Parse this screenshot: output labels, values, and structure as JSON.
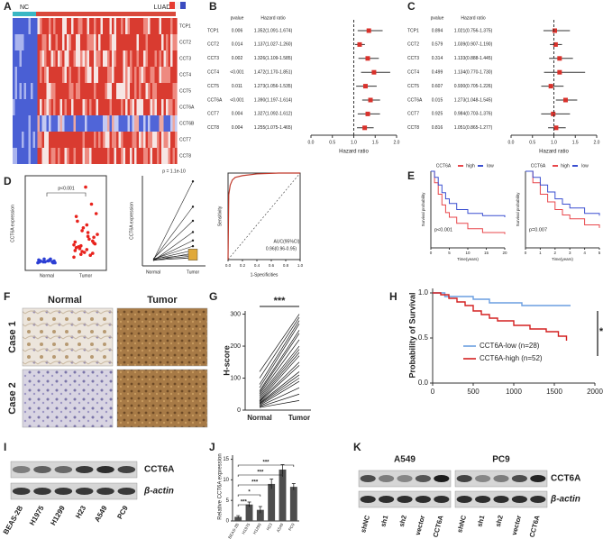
{
  "panel_labels": [
    "A",
    "B",
    "C",
    "D",
    "E",
    "F",
    "G",
    "H",
    "I",
    "J",
    "K"
  ],
  "heatmap": {
    "groups": [
      "NC",
      "LUAD"
    ],
    "genes": [
      "TCP1",
      "CCT2",
      "CCT3",
      "CCT4",
      "CCT5",
      "CCT6A",
      "CCT6B",
      "CCT7",
      "CCT8"
    ]
  },
  "forest_b": {
    "header": [
      "pvalue",
      "Hazard ratio"
    ],
    "xlabel": "Hazard ratio",
    "xlim": [
      0,
      2
    ],
    "ref_line": 1,
    "xticks": [
      {
        "value": 0,
        "label": "0.0"
      },
      0.5,
      {
        "value": 1,
        "label": "1.0"
      },
      1.5,
      {
        "value": 2,
        "label": "2.0"
      }
    ],
    "rows": [
      {
        "gene": "TCP1",
        "pvalue": "0.006",
        "label": "1.352(1.091-1.674)",
        "hr": 1.352,
        "lo": 1.091,
        "hi": 1.674
      },
      {
        "gene": "CCT2",
        "pvalue": "0.014",
        "label": "1.137(1.027-1.260)",
        "hr": 1.137,
        "lo": 1.027,
        "hi": 1.26
      },
      {
        "gene": "CCT3",
        "pvalue": "0.002",
        "label": "1.326(1.109-1.585)",
        "hr": 1.326,
        "lo": 1.109,
        "hi": 1.585
      },
      {
        "gene": "CCT4",
        "pvalue": "<0.001",
        "label": "1.472(1.170-1.851)",
        "hr": 1.472,
        "lo": 1.17,
        "hi": 1.851
      },
      {
        "gene": "CCT5",
        "pvalue": "0.011",
        "label": "1.273(1.056-1.535)",
        "hr": 1.273,
        "lo": 1.056,
        "hi": 1.535
      },
      {
        "gene": "CCT6A",
        "pvalue": "<0.001",
        "label": "1.390(1.197-1.614)",
        "hr": 1.39,
        "lo": 1.197,
        "hi": 1.614
      },
      {
        "gene": "CCT7",
        "pvalue": "0.004",
        "label": "1.327(1.092-1.612)",
        "hr": 1.327,
        "lo": 1.092,
        "hi": 1.612
      },
      {
        "gene": "CCT8",
        "pvalue": "0.004",
        "label": "1.255(1.075-1.465)",
        "hr": 1.255,
        "lo": 1.075,
        "hi": 1.465
      }
    ]
  },
  "forest_c": {
    "header": [
      "pvalue",
      "Hazard ratio"
    ],
    "xlabel": "Hazard ratio",
    "xlim": [
      0,
      2
    ],
    "ref_line": 1,
    "xticks": [
      {
        "value": 0,
        "label": "0.0"
      },
      0.5,
      {
        "value": 1,
        "label": "1.0"
      },
      1.5,
      {
        "value": 2,
        "label": "2.0"
      }
    ],
    "rows": [
      {
        "gene": "TCP1",
        "pvalue": "0.894",
        "label": "1.021(0.756-1.375)",
        "hr": 1.021,
        "lo": 0.756,
        "hi": 1.375
      },
      {
        "gene": "CCT2",
        "pvalue": "0.579",
        "label": "1.039(0.907-1.190)",
        "hr": 1.039,
        "lo": 0.907,
        "hi": 1.19
      },
      {
        "gene": "CCT3",
        "pvalue": "0.314",
        "label": "1.133(0.888-1.445)",
        "hr": 1.133,
        "lo": 0.888,
        "hi": 1.445
      },
      {
        "gene": "CCT4",
        "pvalue": "0.499",
        "label": "1.134(0.770-1.730)",
        "hr": 1.134,
        "lo": 0.77,
        "hi": 1.73
      },
      {
        "gene": "CCT5",
        "pvalue": "0.607",
        "label": "0.930(0.705-1.226)",
        "hr": 0.93,
        "lo": 0.705,
        "hi": 1.226
      },
      {
        "gene": "CCT6A",
        "pvalue": "0.015",
        "label": "1.273(1.048-1.545)",
        "hr": 1.273,
        "lo": 1.048,
        "hi": 1.545
      },
      {
        "gene": "CCT7",
        "pvalue": "0.925",
        "label": "0.984(0.703-1.376)",
        "hr": 0.984,
        "lo": 0.703,
        "hi": 1.376
      },
      {
        "gene": "CCT8",
        "pvalue": "0.816",
        "label": "1.051(0.865-1.277)",
        "hr": 1.051,
        "lo": 0.865,
        "hi": 1.277
      }
    ]
  },
  "d_dot": {
    "ylabel": "CCT6A expression",
    "categories": [
      "Normal",
      "Tumor"
    ],
    "annotation": "p<0.001",
    "ylim": [
      0,
      100
    ],
    "normal": [
      8,
      9,
      10,
      9,
      11,
      8,
      10,
      12,
      9,
      10,
      11,
      9,
      10,
      8,
      12
    ],
    "tumor": [
      14,
      18,
      22,
      26,
      30,
      35,
      40,
      20,
      24,
      28,
      33,
      45,
      52,
      60,
      16,
      19,
      25,
      38,
      70,
      88,
      23,
      27,
      31,
      48,
      17,
      21,
      29,
      36,
      42,
      57
    ]
  },
  "d_paired": {
    "ylabel": "CCT6A expression",
    "categories": [
      "Normal",
      "Tumor"
    ],
    "annotation": "p = 1.1e-10",
    "ylim": [
      0,
      320
    ],
    "normal": [
      20,
      22,
      25,
      18,
      21,
      24,
      23,
      19,
      26,
      22,
      20,
      21
    ],
    "tumor": [
      300,
      210,
      160,
      120,
      90,
      70,
      55,
      45,
      40,
      35,
      30,
      28
    ]
  },
  "d_roc": {
    "xlabel": "1-Specificities",
    "ylabel": "Sensitivity",
    "annotation": [
      "AUC(95%CI)",
      "0.96(0.96-0.95)"
    ],
    "xlim": [
      0,
      1
    ],
    "ylim": [
      0,
      1
    ],
    "xticks": [
      {
        "value": 0,
        "label": "0.0"
      },
      0.2,
      0.4,
      0.6,
      0.8,
      {
        "value": 1,
        "label": "1.0"
      }
    ],
    "x": [
      0,
      0.01,
      0.03,
      0.06,
      0.1,
      0.2,
      0.4,
      0.7,
      1
    ],
    "y": [
      0,
      0.75,
      0.86,
      0.92,
      0.95,
      0.97,
      0.99,
      1,
      1
    ]
  },
  "e_km": [
    {
      "legend_title": "CCT6A",
      "xlabel": "Time(years)",
      "ylabel": "Survival probability",
      "annotation": "p<0.001",
      "xlim": [
        0,
        20
      ],
      "ylim": [
        0,
        1
      ],
      "xticks": [
        0,
        5,
        10,
        15,
        20
      ],
      "series": [
        {
          "name": "high",
          "color": "#e8474b",
          "x": [
            0,
            1,
            2,
            3,
            4,
            5,
            7,
            10,
            14,
            20
          ],
          "y": [
            1,
            0.85,
            0.7,
            0.56,
            0.46,
            0.4,
            0.32,
            0.25,
            0.2,
            0.18
          ]
        },
        {
          "name": "low",
          "color": "#3a4fd0",
          "x": [
            0,
            1,
            2,
            3,
            4,
            5,
            7,
            10,
            14,
            20
          ],
          "y": [
            1,
            0.92,
            0.82,
            0.72,
            0.64,
            0.58,
            0.5,
            0.45,
            0.42,
            0.4
          ]
        }
      ]
    },
    {
      "legend_title": "CCT6A",
      "xlabel": "Time(years)",
      "ylabel": "Survival probability",
      "annotation": "p=0.007",
      "xlim": [
        0,
        5
      ],
      "ylim": [
        0,
        1
      ],
      "xticks": [
        0,
        1,
        2,
        3,
        4,
        5
      ],
      "series": [
        {
          "name": "high",
          "color": "#e8474b",
          "x": [
            0,
            0.5,
            1,
            1.5,
            2,
            2.5,
            3,
            4,
            5
          ],
          "y": [
            1,
            0.85,
            0.7,
            0.6,
            0.5,
            0.43,
            0.38,
            0.3,
            0.26
          ]
        },
        {
          "name": "low",
          "color": "#3a4fd0",
          "x": [
            0,
            0.5,
            1,
            1.5,
            2,
            2.5,
            3,
            4,
            5
          ],
          "y": [
            1,
            0.92,
            0.82,
            0.73,
            0.64,
            0.57,
            0.52,
            0.45,
            0.42
          ]
        }
      ]
    }
  ],
  "f_ihc": {
    "columns": [
      "Normal",
      "Tumor"
    ],
    "rows": [
      "Case 1",
      "Case 2"
    ]
  },
  "g_hscore": {
    "ylabel": "H-score",
    "categories": [
      "Normal",
      "Tumor"
    ],
    "annotation": "***",
    "ylim": [
      0,
      310
    ],
    "yticks": [
      0,
      100,
      200,
      300
    ],
    "normal": [
      120,
      100,
      80,
      70,
      60,
      55,
      50,
      45,
      40,
      35,
      30,
      28,
      25,
      22,
      20,
      18,
      15,
      12,
      10,
      8
    ],
    "tumor": [
      300,
      290,
      280,
      270,
      250,
      240,
      220,
      200,
      190,
      180,
      170,
      150,
      140,
      120,
      110,
      100,
      90,
      70,
      50,
      30
    ]
  },
  "h_km": {
    "ylabel": "Probability of Survival",
    "annotation": "*",
    "xlim": [
      0,
      2000
    ],
    "xticks": [
      0,
      500,
      1000,
      1500,
      2000
    ],
    "ylim": [
      0,
      1.05
    ],
    "yticks": [
      {
        "value": 0,
        "label": "0.0"
      },
      0.5,
      {
        "value": 1,
        "label": "1.0"
      }
    ],
    "series": [
      {
        "name": "CCT6A-low (n=28)",
        "color": "#6a9ee0",
        "x": [
          0,
          150,
          500,
          700,
          1100,
          1700
        ],
        "y": [
          1,
          0.96,
          0.93,
          0.89,
          0.86,
          0.86
        ]
      },
      {
        "name": "CCT6A-high (n=52)",
        "color": "#d42020",
        "x": [
          0,
          100,
          200,
          300,
          400,
          500,
          600,
          700,
          800,
          1000,
          1200,
          1400,
          1550,
          1650
        ],
        "y": [
          1,
          0.98,
          0.94,
          0.9,
          0.86,
          0.8,
          0.76,
          0.72,
          0.69,
          0.64,
          0.6,
          0.57,
          0.52,
          0.47
        ]
      }
    ]
  },
  "i_blot": {
    "proteins": [
      "CCT6A",
      "β-actin"
    ],
    "lanes": [
      "BEAS-2B",
      "H1975",
      "H1299",
      "H23",
      "A549",
      "PC9"
    ]
  },
  "j_bar": {
    "ylabel": "Relative CCT6A expression",
    "categories": [
      "BEAS-2B",
      "H1975",
      "H1299",
      "H23",
      "A549",
      "PC9"
    ],
    "values": [
      1,
      4,
      2.7,
      9,
      12.5,
      8.3
    ],
    "errors": [
      0.3,
      0.6,
      0.8,
      1.2,
      1.2,
      0.8
    ],
    "significance": [
      "***",
      "*",
      "***",
      "***",
      "***"
    ],
    "ylim": [
      0,
      16
    ],
    "yticks": [
      0,
      5,
      10,
      15
    ],
    "color": "#4d4d4d"
  },
  "k_blot": {
    "groups": [
      "A549",
      "PC9"
    ],
    "proteins": [
      "CCT6A",
      "β-actin"
    ],
    "lanes": [
      "shNC",
      "sh1",
      "sh2",
      "vector",
      "CCT6A"
    ]
  }
}
